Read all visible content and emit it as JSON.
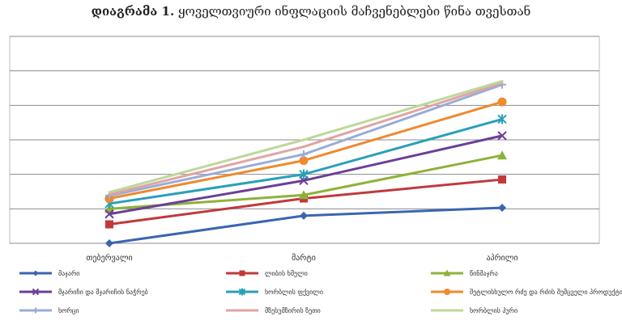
{
  "title": {
    "prefix": "დიაგრამა 1.",
    "text": " ყოველთვიური ინფლაციის მაჩვენებლები წინა თვესთან"
  },
  "chart_data": {
    "type": "line",
    "categories": [
      "თებერვალი",
      "მარტი",
      "აპრილი"
    ],
    "ylim": [
      0,
      6
    ],
    "grid": true,
    "y_tick_labels_shown": false,
    "legend_position": "bottom",
    "series": [
      {
        "name": "მაჯარი",
        "color": "#3a66b0",
        "marker": "diamond",
        "values": [
          0.0,
          0.8,
          1.03
        ]
      },
      {
        "name": "ლიბის ხმელი",
        "color": "#c0393b",
        "marker": "square",
        "values": [
          0.55,
          1.3,
          1.85
        ]
      },
      {
        "name": "წინმაჯრა",
        "color": "#8db23a",
        "marker": "triangle",
        "values": [
          1.0,
          1.4,
          2.55
        ]
      },
      {
        "name": "მჯარიჩი და მჯარიჩის ნაჭრებ",
        "color": "#6b3f96",
        "marker": "x",
        "values": [
          0.85,
          1.82,
          3.12
        ]
      },
      {
        "name": "ხორბლის ფქვილი",
        "color": "#2aa0b8",
        "marker": "star",
        "values": [
          1.15,
          2.0,
          3.6
        ]
      },
      {
        "name": "შეტლისხულო რძე და რძის შემცველი პროდუქტი",
        "color": "#ef8a2e",
        "marker": "circle",
        "values": [
          1.3,
          2.4,
          4.1
        ]
      },
      {
        "name": "ხორცი",
        "color": "#98acd6",
        "marker": "plus",
        "values": [
          1.38,
          2.58,
          4.6
        ]
      },
      {
        "name": "მზესუმზირის ზეთი",
        "color": "#e0a4a4",
        "marker": "none",
        "values": [
          1.42,
          2.8,
          4.65
        ]
      },
      {
        "name": "ხორბლის პური",
        "color": "#bcd89a",
        "marker": "none",
        "values": [
          1.48,
          3.0,
          4.7
        ]
      }
    ]
  }
}
